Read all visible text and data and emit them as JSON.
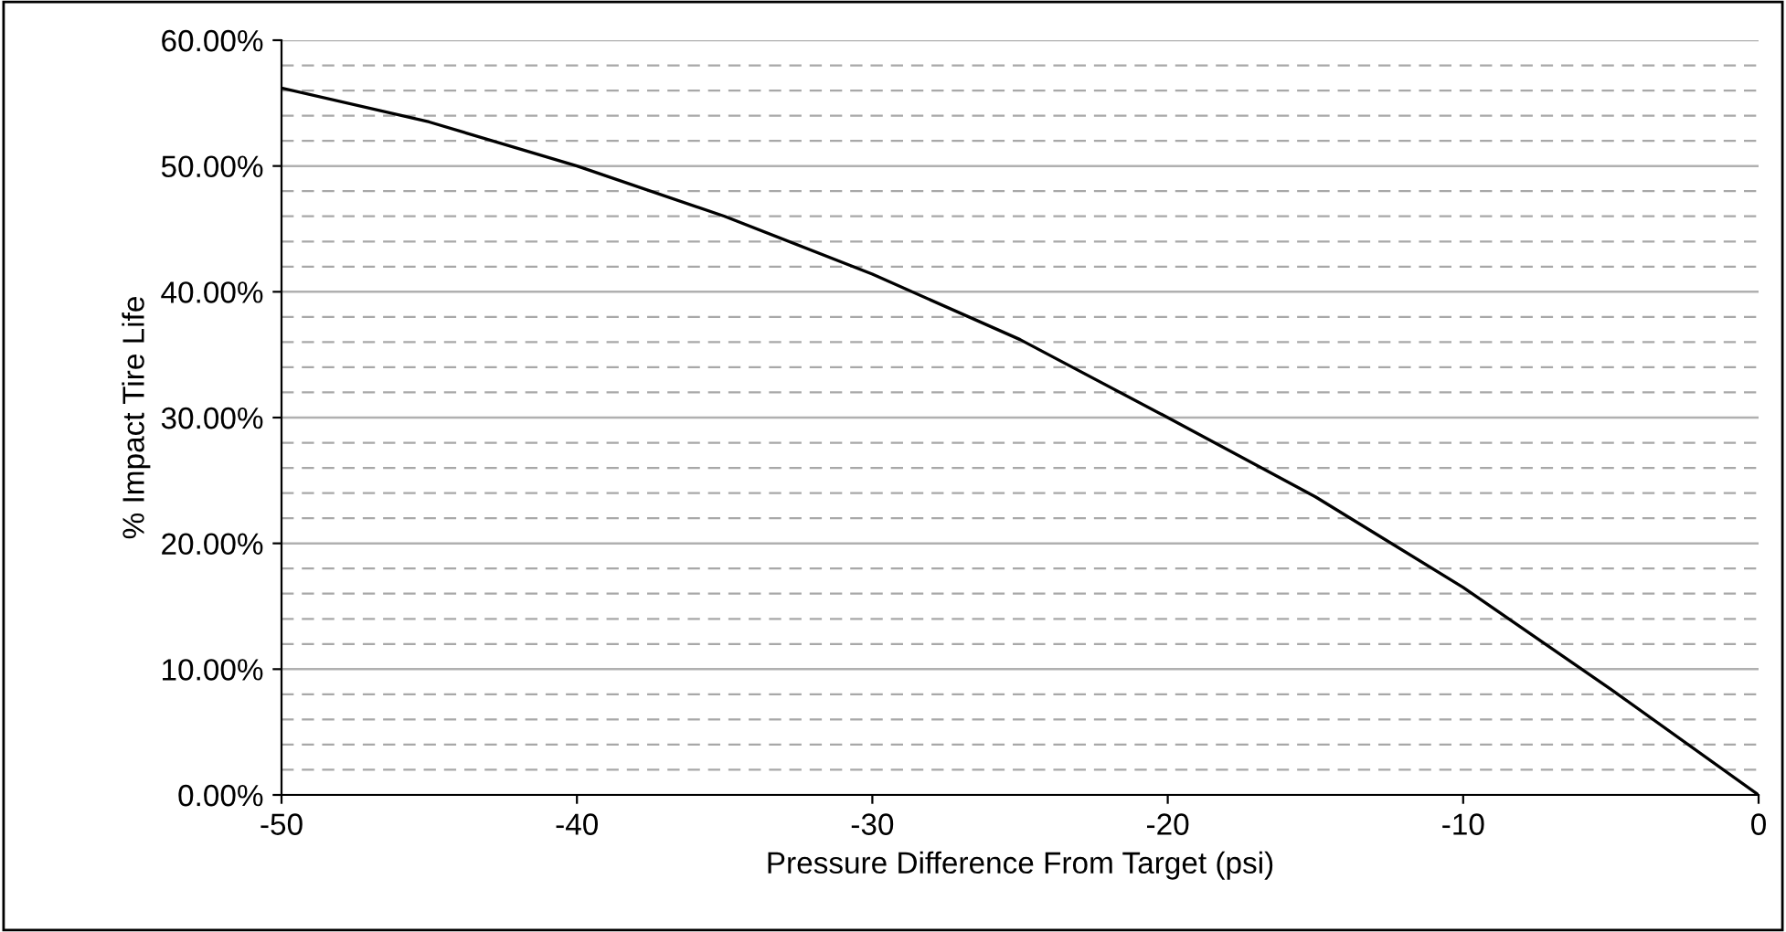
{
  "chart_data": {
    "type": "line",
    "xlabel": "Pressure Difference From Target (psi)",
    "ylabel": "% Impact Tire Life",
    "x": [
      -50,
      -45,
      -40,
      -35,
      -30,
      -25,
      -20,
      -15,
      -10,
      -5,
      0
    ],
    "series": [
      {
        "color": "#000000",
        "values": [
          56.2,
          53.5,
          50.0,
          46.0,
          41.4,
          36.2,
          30.0,
          23.7,
          16.5,
          8.4,
          0
        ]
      }
    ],
    "xlim": [
      -50,
      0
    ],
    "xticks": [
      -50,
      -40,
      -30,
      -20,
      -10,
      0
    ],
    "ylim": [
      0,
      60
    ],
    "yticks": [
      {
        "value": 0,
        "label": "0.00%"
      },
      {
        "value": 10,
        "label": "10.00%"
      },
      {
        "value": 20,
        "label": "20.00%"
      },
      {
        "value": 30,
        "label": "30.00%"
      },
      {
        "value": 40,
        "label": "40.00%"
      },
      {
        "value": 50,
        "label": "50.00%"
      },
      {
        "value": 60,
        "label": "60.00%"
      }
    ],
    "grid": "y",
    "marker": "none",
    "line_style": "solid",
    "legend": false
  }
}
